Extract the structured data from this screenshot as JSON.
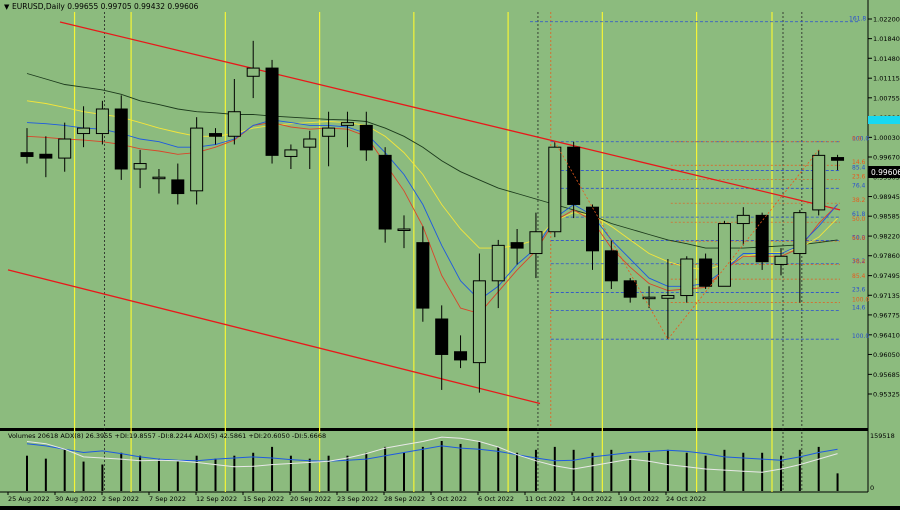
{
  "header": {
    "arrow": "▼",
    "symbol_line": "EURUSD,Daily  0.99655 0.99705 0.99432 0.99606"
  },
  "indicator_header": "Volumes 20618  ADX(8) 26.3955 +DI:19.8557 -DI:8.2244  ADX(5) 42.5861 +DI:20.6050 -DI:5.6668",
  "colors": {
    "background": "#8cbb7e",
    "candle_up": "#8cbb7e",
    "candle_down": "#000000",
    "channel": "#e8181a",
    "period_sep": "#f4f437",
    "ma_slow": "#1c3a1c",
    "ma_mid": "#f4e53a",
    "ma_fast": "#1e5ae0",
    "ma_red": "#d9452a",
    "fib_blue": "#2a4fd0",
    "fib_red": "#e85a1c",
    "price_box": "#000000",
    "cyan_box": "#18d8f0",
    "adx_blue": "#1e5ae0",
    "adx_white": "#e8e8e8"
  },
  "chart_data": {
    "type": "candlestick",
    "symbol": "EURUSD",
    "timeframe": "Daily",
    "last_price": "0.99606",
    "price_axis_labels": [
      "1.02200",
      "1.01840",
      "1.01480",
      "1.01115",
      "1.00755",
      "1.00396",
      "1.00030",
      "0.99670",
      "0.99305",
      "0.98945",
      "0.98585",
      "0.98220",
      "0.97860",
      "0.97495",
      "0.97135",
      "0.96775",
      "0.96410",
      "0.96050",
      "0.95685",
      "0.95325"
    ],
    "date_labels": [
      "25 Aug 2022",
      "30 Aug 2022",
      "2 Sep 2022",
      "7 Sep 2022",
      "12 Sep 2022",
      "15 Sep 2022",
      "20 Sep 2022",
      "23 Sep 2022",
      "28 Sep 2022",
      "3 Oct 2022",
      "6 Oct 2022",
      "11 Oct 2022",
      "14 Oct 2022",
      "19 Oct 2022",
      "24 Oct 2022"
    ],
    "candles": [
      {
        "o": 0.9975,
        "h": 1.002,
        "l": 0.9955,
        "c": 0.9968
      },
      {
        "o": 0.9972,
        "h": 1.0005,
        "l": 0.993,
        "c": 0.9965
      },
      {
        "o": 0.9965,
        "h": 1.003,
        "l": 0.994,
        "c": 1.0
      },
      {
        "o": 1.001,
        "h": 1.006,
        "l": 0.9985,
        "c": 1.002
      },
      {
        "o": 1.001,
        "h": 1.007,
        "l": 0.999,
        "c": 1.0055
      },
      {
        "o": 1.0055,
        "h": 1.008,
        "l": 0.9925,
        "c": 0.9945
      },
      {
        "o": 0.9945,
        "h": 0.998,
        "l": 0.991,
        "c": 0.9955
      },
      {
        "o": 0.993,
        "h": 0.9945,
        "l": 0.99,
        "c": 0.993
      },
      {
        "o": 0.9925,
        "h": 0.9955,
        "l": 0.988,
        "c": 0.99
      },
      {
        "o": 0.9905,
        "h": 1.004,
        "l": 0.988,
        "c": 1.002
      },
      {
        "o": 1.001,
        "h": 1.002,
        "l": 0.999,
        "c": 1.0005
      },
      {
        "o": 1.0005,
        "h": 1.011,
        "l": 0.999,
        "c": 1.005
      },
      {
        "o": 1.0115,
        "h": 1.018,
        "l": 1.0075,
        "c": 1.013
      },
      {
        "o": 1.013,
        "h": 1.0145,
        "l": 0.9955,
        "c": 0.997
      },
      {
        "o": 0.9968,
        "h": 0.999,
        "l": 0.9945,
        "c": 0.998
      },
      {
        "o": 0.9985,
        "h": 1.0015,
        "l": 0.9945,
        "c": 1.0
      },
      {
        "o": 1.0005,
        "h": 1.005,
        "l": 0.995,
        "c": 1.002
      },
      {
        "o": 1.0025,
        "h": 1.005,
        "l": 0.9985,
        "c": 1.003
      },
      {
        "o": 1.0025,
        "h": 1.005,
        "l": 0.996,
        "c": 0.998
      },
      {
        "o": 0.997,
        "h": 0.9985,
        "l": 0.981,
        "c": 0.9835
      },
      {
        "o": 0.9835,
        "h": 0.986,
        "l": 0.98,
        "c": 0.9835
      },
      {
        "o": 0.981,
        "h": 0.984,
        "l": 0.9665,
        "c": 0.969
      },
      {
        "o": 0.967,
        "h": 0.9695,
        "l": 0.954,
        "c": 0.9605
      },
      {
        "o": 0.961,
        "h": 0.964,
        "l": 0.958,
        "c": 0.9595
      },
      {
        "o": 0.959,
        "h": 0.979,
        "l": 0.9535,
        "c": 0.974
      },
      {
        "o": 0.974,
        "h": 0.9815,
        "l": 0.969,
        "c": 0.9805
      },
      {
        "o": 0.981,
        "h": 0.9835,
        "l": 0.977,
        "c": 0.98
      },
      {
        "o": 0.979,
        "h": 0.9865,
        "l": 0.9745,
        "c": 0.983
      },
      {
        "o": 0.983,
        "h": 0.9995,
        "l": 0.982,
        "c": 0.9985
      },
      {
        "o": 0.9985,
        "h": 0.9995,
        "l": 0.9855,
        "c": 0.988
      },
      {
        "o": 0.9875,
        "h": 0.988,
        "l": 0.976,
        "c": 0.9795
      },
      {
        "o": 0.9795,
        "h": 0.9815,
        "l": 0.9725,
        "c": 0.974
      },
      {
        "o": 0.974,
        "h": 0.9745,
        "l": 0.97,
        "c": 0.971
      },
      {
        "o": 0.971,
        "h": 0.973,
        "l": 0.969,
        "c": 0.971
      },
      {
        "o": 0.9708,
        "h": 0.978,
        "l": 0.9633,
        "c": 0.9713
      },
      {
        "o": 0.9713,
        "h": 0.9785,
        "l": 0.97,
        "c": 0.978
      },
      {
        "o": 0.978,
        "h": 0.979,
        "l": 0.9725,
        "c": 0.973
      },
      {
        "o": 0.973,
        "h": 0.985,
        "l": 0.973,
        "c": 0.9845
      },
      {
        "o": 0.9845,
        "h": 0.9875,
        "l": 0.9805,
        "c": 0.986
      },
      {
        "o": 0.986,
        "h": 0.9865,
        "l": 0.976,
        "c": 0.9775
      },
      {
        "o": 0.977,
        "h": 0.98,
        "l": 0.975,
        "c": 0.9785
      },
      {
        "o": 0.979,
        "h": 0.987,
        "l": 0.97,
        "c": 0.9865
      },
      {
        "o": 0.987,
        "h": 0.998,
        "l": 0.986,
        "c": 0.997
      },
      {
        "o": 0.9966,
        "h": 0.9971,
        "l": 0.9943,
        "c": 0.9961
      }
    ],
    "ma_slow": [
      1.012,
      1.011,
      1.01,
      1.0095,
      1.009,
      1.0082,
      1.007,
      1.0063,
      1.0055,
      1.005,
      1.0048,
      1.0045,
      1.0045,
      1.0042,
      1.004,
      1.0038,
      1.0036,
      1.0035,
      1.0032,
      1.002,
      1.0005,
      0.9985,
      0.996,
      0.994,
      0.9925,
      0.991,
      0.99,
      0.989,
      0.988,
      0.987,
      0.986,
      0.9845,
      0.9835,
      0.9825,
      0.9815,
      0.9808,
      0.98,
      0.98,
      0.98,
      0.9802,
      0.9804,
      0.9806,
      0.981,
      0.9815
    ],
    "ma_mid": [
      1.007,
      1.0065,
      1.0058,
      1.005,
      1.0045,
      1.004,
      1.003,
      1.002,
      1.0012,
      1.0005,
      1.0005,
      1.001,
      1.002,
      1.0025,
      1.0028,
      1.003,
      1.0032,
      1.003,
      1.0025,
      1.0005,
      0.9975,
      0.9935,
      0.988,
      0.9835,
      0.98,
      0.98,
      0.9805,
      0.9815,
      0.985,
      0.9865,
      0.986,
      0.984,
      0.9815,
      0.979,
      0.9775,
      0.9765,
      0.976,
      0.977,
      0.9785,
      0.979,
      0.9792,
      0.98,
      0.982,
      0.9855
    ],
    "ma_fast": [
      1.003,
      1.0028,
      1.0025,
      1.002,
      1.0018,
      1.001,
      1.0,
      0.9995,
      0.9985,
      0.9985,
      0.999,
      1.0,
      1.0025,
      1.0035,
      1.003,
      1.0025,
      1.0025,
      1.0022,
      1.001,
      0.9975,
      0.9935,
      0.988,
      0.9805,
      0.974,
      0.9705,
      0.973,
      0.977,
      0.98,
      0.9855,
      0.988,
      0.986,
      0.9815,
      0.978,
      0.9745,
      0.973,
      0.973,
      0.9735,
      0.976,
      0.979,
      0.979,
      0.979,
      0.9805,
      0.984,
      0.988
    ],
    "ma_red": [
      1.0005,
      1.0003,
      1.0,
      0.9998,
      0.9995,
      0.999,
      0.9982,
      0.9978,
      0.9972,
      0.9975,
      0.9985,
      0.9998,
      1.0025,
      1.003,
      1.0022,
      1.0018,
      1.002,
      1.0018,
      1.0005,
      0.9955,
      0.9905,
      0.984,
      0.975,
      0.969,
      0.968,
      0.972,
      0.976,
      0.9795,
      0.985,
      0.987,
      0.985,
      0.98,
      0.9765,
      0.9735,
      0.9722,
      0.9725,
      0.9728,
      0.976,
      0.9785,
      0.9785,
      0.9785,
      0.98,
      0.9845,
      0.988
    ],
    "fib_blue_levels": [
      "100.0",
      "85.4",
      "76.4",
      "61.8",
      "50.0",
      "38.2",
      "23.6",
      "14.6",
      "100.0"
    ],
    "fib_red_levels": [
      "0.0",
      "14.6",
      "23.6",
      "38.2",
      "50.0",
      "61.8",
      "76.4",
      "85.4",
      "100.0"
    ],
    "fib_top_label": "161.8",
    "volumes": [
      12,
      11,
      14,
      10,
      9,
      13,
      12,
      11,
      10,
      12,
      11,
      12,
      13,
      15,
      12,
      11,
      12,
      12,
      13,
      15,
      13,
      15,
      17,
      16,
      17,
      15,
      13,
      14,
      15,
      14,
      13,
      14,
      12,
      13,
      14,
      13,
      12,
      14,
      13,
      13,
      12,
      14,
      15,
      6
    ],
    "volume_axis_max": "159518",
    "volume_axis_zero": "0",
    "adx_blue": [
      0.86,
      0.82,
      0.76,
      0.7,
      0.73,
      0.68,
      0.62,
      0.58,
      0.56,
      0.55,
      0.58,
      0.6,
      0.62,
      0.6,
      0.57,
      0.55,
      0.54,
      0.56,
      0.58,
      0.64,
      0.7,
      0.76,
      0.82,
      0.78,
      0.76,
      0.72,
      0.66,
      0.6,
      0.55,
      0.56,
      0.62,
      0.66,
      0.7,
      0.72,
      0.74,
      0.72,
      0.68,
      0.62,
      0.6,
      0.58,
      0.56,
      0.62,
      0.7,
      0.76
    ],
    "adx_white": [
      0.9,
      0.86,
      0.76,
      0.62,
      0.6,
      0.58,
      0.55,
      0.56,
      0.55,
      0.52,
      0.48,
      0.44,
      0.45,
      0.48,
      0.5,
      0.52,
      0.54,
      0.6,
      0.68,
      0.78,
      0.84,
      0.9,
      0.98,
      0.96,
      0.9,
      0.8,
      0.66,
      0.55,
      0.46,
      0.4,
      0.46,
      0.52,
      0.58,
      0.54,
      0.48,
      0.44,
      0.4,
      0.38,
      0.36,
      0.34,
      0.4,
      0.48,
      0.58,
      0.68
    ]
  }
}
